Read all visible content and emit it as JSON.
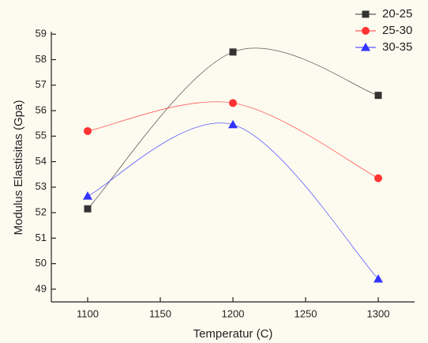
{
  "chart_data": {
    "type": "line",
    "x_label": "Temperatur (C)",
    "y_label": "Modulus  Elastisitas (Gpa)",
    "x": [
      1100,
      1200,
      1300
    ],
    "series": [
      {
        "name": "20-25",
        "color": "#333333",
        "marker": "square",
        "values": [
          52.15,
          58.3,
          56.6
        ]
      },
      {
        "name": "25-30",
        "color": "#ff3333",
        "marker": "circle",
        "values": [
          55.2,
          56.3,
          53.35
        ]
      },
      {
        "name": "30-35",
        "color": "#3333ff",
        "marker": "triangle",
        "values": [
          52.65,
          55.45,
          49.4
        ]
      }
    ],
    "xlim": [
      1075,
      1325
    ],
    "xticks": [
      1100,
      1150,
      1200,
      1250,
      1300
    ],
    "ylim": [
      48.5,
      59.1
    ],
    "yticks": [
      49,
      50,
      51,
      52,
      53,
      54,
      55,
      56,
      57,
      58,
      59
    ],
    "legend": "top-right",
    "grid": false
  }
}
